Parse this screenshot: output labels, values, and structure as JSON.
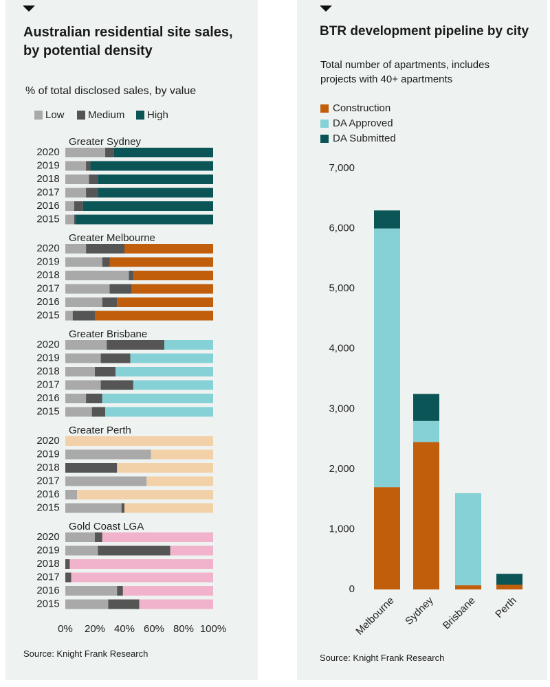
{
  "chart_data": [
    {
      "type": "bar",
      "orientation": "horizontal",
      "stacked": true,
      "title": "Australian residential site sales, by potential density",
      "subtitle": "% of total disclosed sales, by value",
      "source": "Source: Knight Frank Research",
      "series": [
        {
          "name": "Low",
          "color": "#a9a9a9"
        },
        {
          "name": "Medium",
          "color": "#555555"
        },
        {
          "name": "High",
          "color": "#0b5557"
        }
      ],
      "xlim": [
        0,
        100
      ],
      "xticks": [
        {
          "value": 0,
          "label": "0%"
        },
        {
          "value": 20,
          "label": "20%"
        },
        {
          "value": 40,
          "label": "40%"
        },
        {
          "value": 60,
          "label": "60%"
        },
        {
          "value": 80,
          "label": "80%"
        },
        {
          "value": 100,
          "label": "100%"
        }
      ],
      "groups": [
        {
          "name": "Greater Sydney",
          "high_color": "#0b5557",
          "categories": [
            "2020",
            "2019",
            "2018",
            "2017",
            "2016",
            "2015"
          ],
          "values": [
            [
              27,
              14,
              16,
              14,
              6,
              6
            ],
            [
              6,
              3,
              6,
              8,
              6,
              1
            ],
            [
              67,
              83,
              78,
              78,
              88,
              93
            ]
          ]
        },
        {
          "name": "Greater Melbourne",
          "high_color": "#c05e0c",
          "categories": [
            "2020",
            "2019",
            "2018",
            "2017",
            "2016",
            "2015"
          ],
          "values": [
            [
              14,
              25,
              43,
              30,
              25,
              5
            ],
            [
              26,
              5,
              3,
              15,
              10,
              15
            ],
            [
              60,
              70,
              54,
              55,
              65,
              80
            ]
          ]
        },
        {
          "name": "Greater Brisbane",
          "high_color": "#86d1d6",
          "categories": [
            "2020",
            "2019",
            "2018",
            "2017",
            "2016",
            "2015"
          ],
          "values": [
            [
              28,
              24,
              20,
              24,
              14,
              18
            ],
            [
              39,
              20,
              14,
              22,
              11,
              9
            ],
            [
              33,
              56,
              66,
              54,
              75,
              73
            ]
          ]
        },
        {
          "name": "Greater Perth",
          "high_color": "#f2d1a9",
          "categories": [
            "2020",
            "2019",
            "2018",
            "2017",
            "2016",
            "2015"
          ],
          "values": [
            [
              0,
              58,
              0,
              55,
              8,
              38
            ],
            [
              0,
              0,
              35,
              0,
              0,
              2
            ],
            [
              100,
              42,
              65,
              45,
              92,
              60
            ]
          ]
        },
        {
          "name": "Gold Coast LGA",
          "high_color": "#f0b3cb",
          "categories": [
            "2020",
            "2019",
            "2018",
            "2017",
            "2016",
            "2015"
          ],
          "values": [
            [
              20,
              22,
              0,
              0,
              35,
              29
            ],
            [
              5,
              49,
              3,
              4,
              4,
              21
            ],
            [
              75,
              29,
              97,
              96,
              61,
              50
            ]
          ]
        }
      ]
    },
    {
      "type": "bar",
      "orientation": "vertical",
      "stacked": true,
      "title": "BTR development pipeline by city",
      "subtitle": "Total number of apartments, includes projects with 40+ apartments",
      "source": "Source: Knight Frank Research",
      "categories": [
        "Melbourne",
        "Sydney",
        "Brisbane",
        "Perth"
      ],
      "series": [
        {
          "name": "Construction",
          "color": "#c05e0c",
          "values": [
            1700,
            2450,
            70,
            80
          ]
        },
        {
          "name": "DA Approved",
          "color": "#86d1d6",
          "values": [
            4300,
            350,
            1530,
            0
          ]
        },
        {
          "name": "DA Submitted",
          "color": "#0b5557",
          "values": [
            300,
            450,
            0,
            180
          ]
        }
      ],
      "ylim": [
        0,
        7000
      ],
      "yticks": [
        0,
        {
          "value": 1000,
          "label": "1,000"
        },
        {
          "value": 2000,
          "label": "2,000"
        },
        {
          "value": 3000,
          "label": "3,000"
        },
        {
          "value": 4000,
          "label": "4,000"
        },
        {
          "value": 5000,
          "label": "5,000"
        },
        {
          "value": 6000,
          "label": "6,000"
        },
        {
          "value": 7000,
          "label": "7,000"
        }
      ]
    }
  ]
}
